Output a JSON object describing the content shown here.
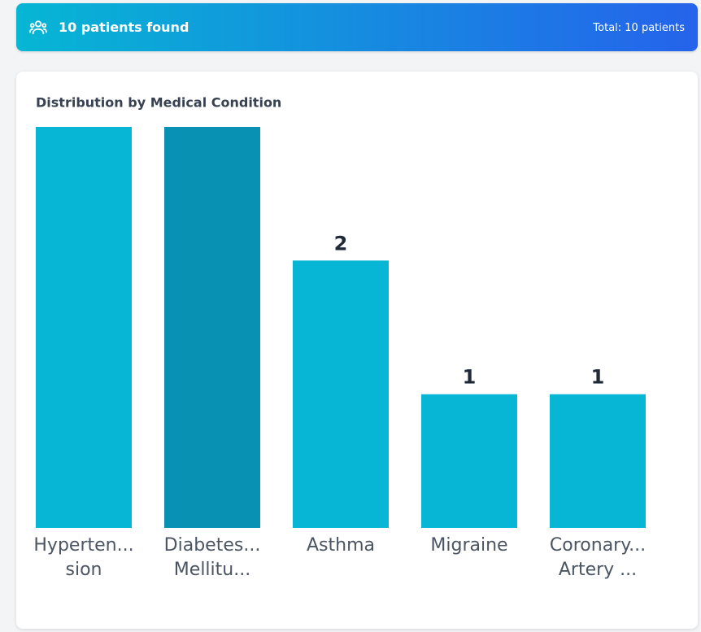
{
  "header": {
    "title": "10 patients found",
    "total": "Total: 10 patients"
  },
  "chart_data": {
    "type": "bar",
    "title": "Distribution by Medical Condition",
    "categories": [
      [
        "Hyperten...",
        "sion"
      ],
      [
        "Diabetes...",
        "Mellitu..."
      ],
      [
        "Asthma"
      ],
      [
        "Migraine"
      ],
      [
        "Coronary...",
        "Artery ..."
      ]
    ],
    "values": [
      3,
      3,
      2,
      1,
      1
    ],
    "colors": [
      "#06b6d4",
      "#0891b2",
      "#06b6d4",
      "#06b6d4",
      "#06b6d4"
    ],
    "ylim": [
      0,
      3
    ]
  }
}
